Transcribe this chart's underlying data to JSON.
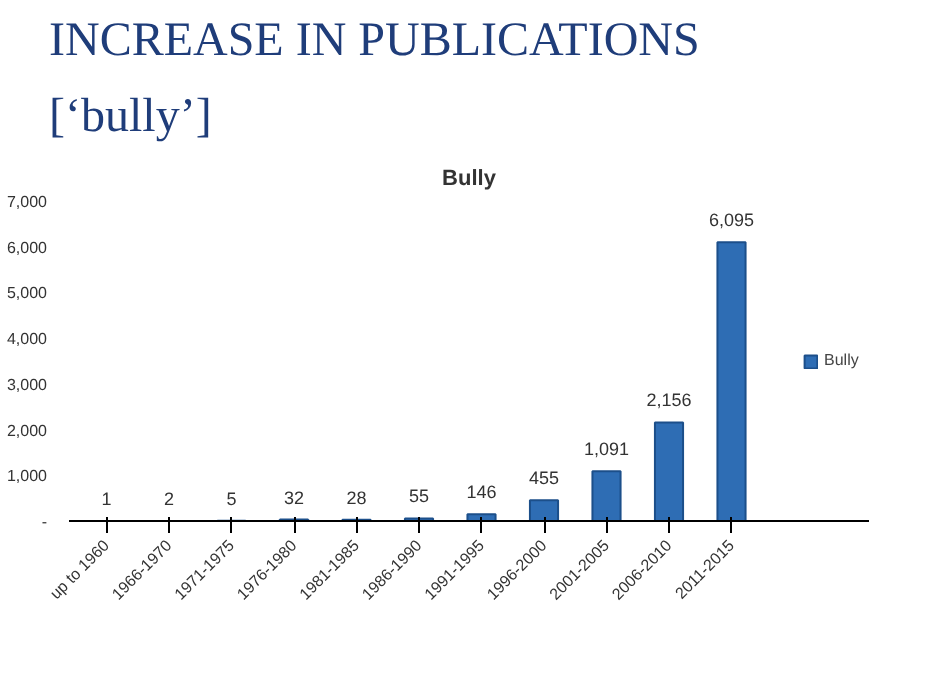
{
  "chart_data": {
    "type": "bar",
    "title": "INCREASE IN PUBLICATIONS",
    "subtitle": "[‘bully’]",
    "annotations": [
      "Bully"
    ],
    "categories": [
      "up to 1960",
      "1966-1970",
      "1971-1975",
      "1976-1980",
      "1981-1985",
      "1986-1990",
      "1991-1995",
      "1996-2000",
      "2001-2005",
      "2006-2010",
      "2011-2015"
    ],
    "series": [
      {
        "name": "Bully",
        "color": "#2e6db4",
        "values": [
          1,
          2,
          5,
          32,
          28,
          55,
          146,
          455,
          1091,
          2156,
          6095
        ],
        "value_labels": [
          "1",
          "2",
          "5",
          "32",
          "28",
          "55",
          "146",
          "455",
          "1,091",
          "2,156",
          "6,095"
        ]
      }
    ],
    "ylim": [
      0,
      7000
    ],
    "yticks": [
      {
        "value": 0,
        "label": "-"
      },
      {
        "value": 1000,
        "label": "1,000"
      },
      {
        "value": 2000,
        "label": "2,000"
      },
      {
        "value": 3000,
        "label": "3,000"
      },
      {
        "value": 4000,
        "label": "4,000"
      },
      {
        "value": 5000,
        "label": "5,000"
      },
      {
        "value": 6000,
        "label": "6,000"
      },
      {
        "value": 7000,
        "label": "7,000"
      }
    ],
    "grid": false,
    "legend": "right"
  }
}
